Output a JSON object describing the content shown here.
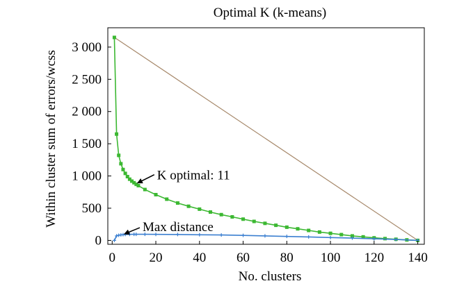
{
  "chart_data": {
    "type": "line",
    "title": "Optimal K (k-means)",
    "xlabel": "No. clusters",
    "ylabel": "Within cluster sum of errors/wcss",
    "xlim": [
      -2,
      143
    ],
    "ylim": [
      -60,
      3300
    ],
    "xticks": [
      0,
      20,
      40,
      60,
      80,
      100,
      120,
      140
    ],
    "xtick_labels": [
      "0",
      "20",
      "40",
      "60",
      "80",
      "100",
      "120",
      "140"
    ],
    "yticks": [
      0,
      500,
      1000,
      1500,
      2000,
      2500,
      3000
    ],
    "ytick_labels": [
      "0",
      "500",
      "1 000",
      "1 500",
      "2 000",
      "2 500",
      "3 000"
    ],
    "grid": false,
    "series": [
      {
        "color": "#3cb832",
        "marker": "square",
        "x": [
          1,
          2,
          3,
          4,
          5,
          6,
          7,
          8,
          9,
          10,
          11,
          12,
          15,
          20,
          25,
          30,
          35,
          40,
          45,
          50,
          55,
          60,
          65,
          70,
          75,
          80,
          85,
          90,
          95,
          100,
          105,
          110,
          115,
          120,
          125,
          130,
          135,
          140
        ],
        "values": [
          3150,
          1650,
          1320,
          1190,
          1100,
          1040,
          990,
          950,
          920,
          895,
          870,
          850,
          790,
          710,
          640,
          580,
          530,
          485,
          440,
          400,
          365,
          330,
          295,
          265,
          235,
          205,
          180,
          155,
          130,
          110,
          90,
          70,
          55,
          40,
          28,
          18,
          8,
          0
        ]
      },
      {
        "color": "#a6886a",
        "marker": "none",
        "x": [
          1,
          140
        ],
        "values": [
          3150,
          0
        ]
      },
      {
        "color": "#3b7fd0",
        "marker": "plus",
        "x": [
          1,
          2,
          3,
          4,
          5,
          6,
          8,
          10,
          11,
          15,
          20,
          30,
          40,
          50,
          60,
          70,
          80,
          90,
          100,
          110,
          120,
          130,
          140
        ],
        "values": [
          0,
          70,
          80,
          85,
          90,
          92,
          94,
          95,
          95,
          95,
          94,
          92,
          88,
          84,
          78,
          70,
          62,
          54,
          45,
          36,
          25,
          14,
          0
        ]
      }
    ],
    "annotations": [
      {
        "text": "K optimal: 11",
        "x": 11,
        "y": 880
      },
      {
        "text": "Max distance",
        "x": 5,
        "y": 90
      }
    ]
  }
}
